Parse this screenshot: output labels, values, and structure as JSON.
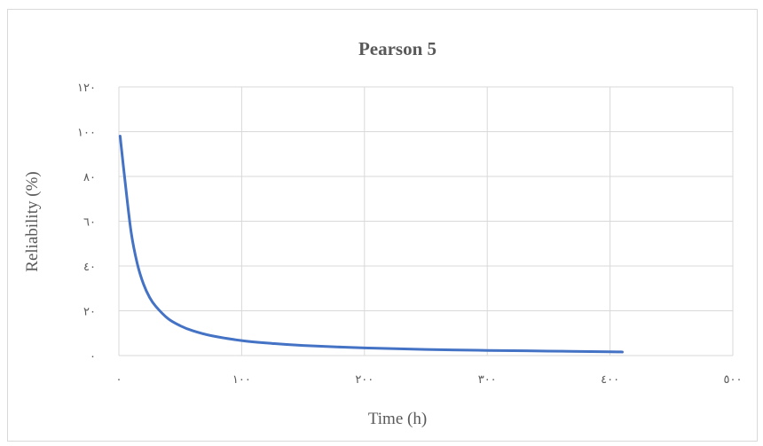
{
  "chart_data": {
    "type": "line",
    "title": "Pearson 5",
    "xlabel": "Time (h)",
    "ylabel": "Reliability (%)",
    "xlim": [
      0,
      500
    ],
    "ylim": [
      0,
      120
    ],
    "x_ticks": [
      0,
      100,
      200,
      300,
      400,
      500
    ],
    "y_ticks": [
      0,
      20,
      40,
      60,
      80,
      100,
      120
    ],
    "x_tick_labels": [
      "٠",
      "١٠٠",
      "٢٠٠",
      "٣٠٠",
      "٤٠٠",
      "٥٠٠"
    ],
    "y_tick_labels": [
      "٠",
      "٢٠",
      "٤٠",
      "٦٠",
      "٨٠",
      "١٠٠",
      "١٢٠"
    ],
    "grid": true,
    "legend": "none",
    "series": [
      {
        "color": "#4472c4",
        "x": [
          1,
          5,
          10,
          15,
          20,
          25,
          30,
          40,
          50,
          60,
          75,
          100,
          125,
          150,
          200,
          250,
          300,
          350,
          400,
          410
        ],
        "y": [
          98,
          78,
          55,
          41,
          32,
          26,
          22,
          16.5,
          13.3,
          11.1,
          8.9,
          6.7,
          5.4,
          4.5,
          3.4,
          2.7,
          2.3,
          2.0,
          1.7,
          1.6
        ]
      }
    ]
  }
}
